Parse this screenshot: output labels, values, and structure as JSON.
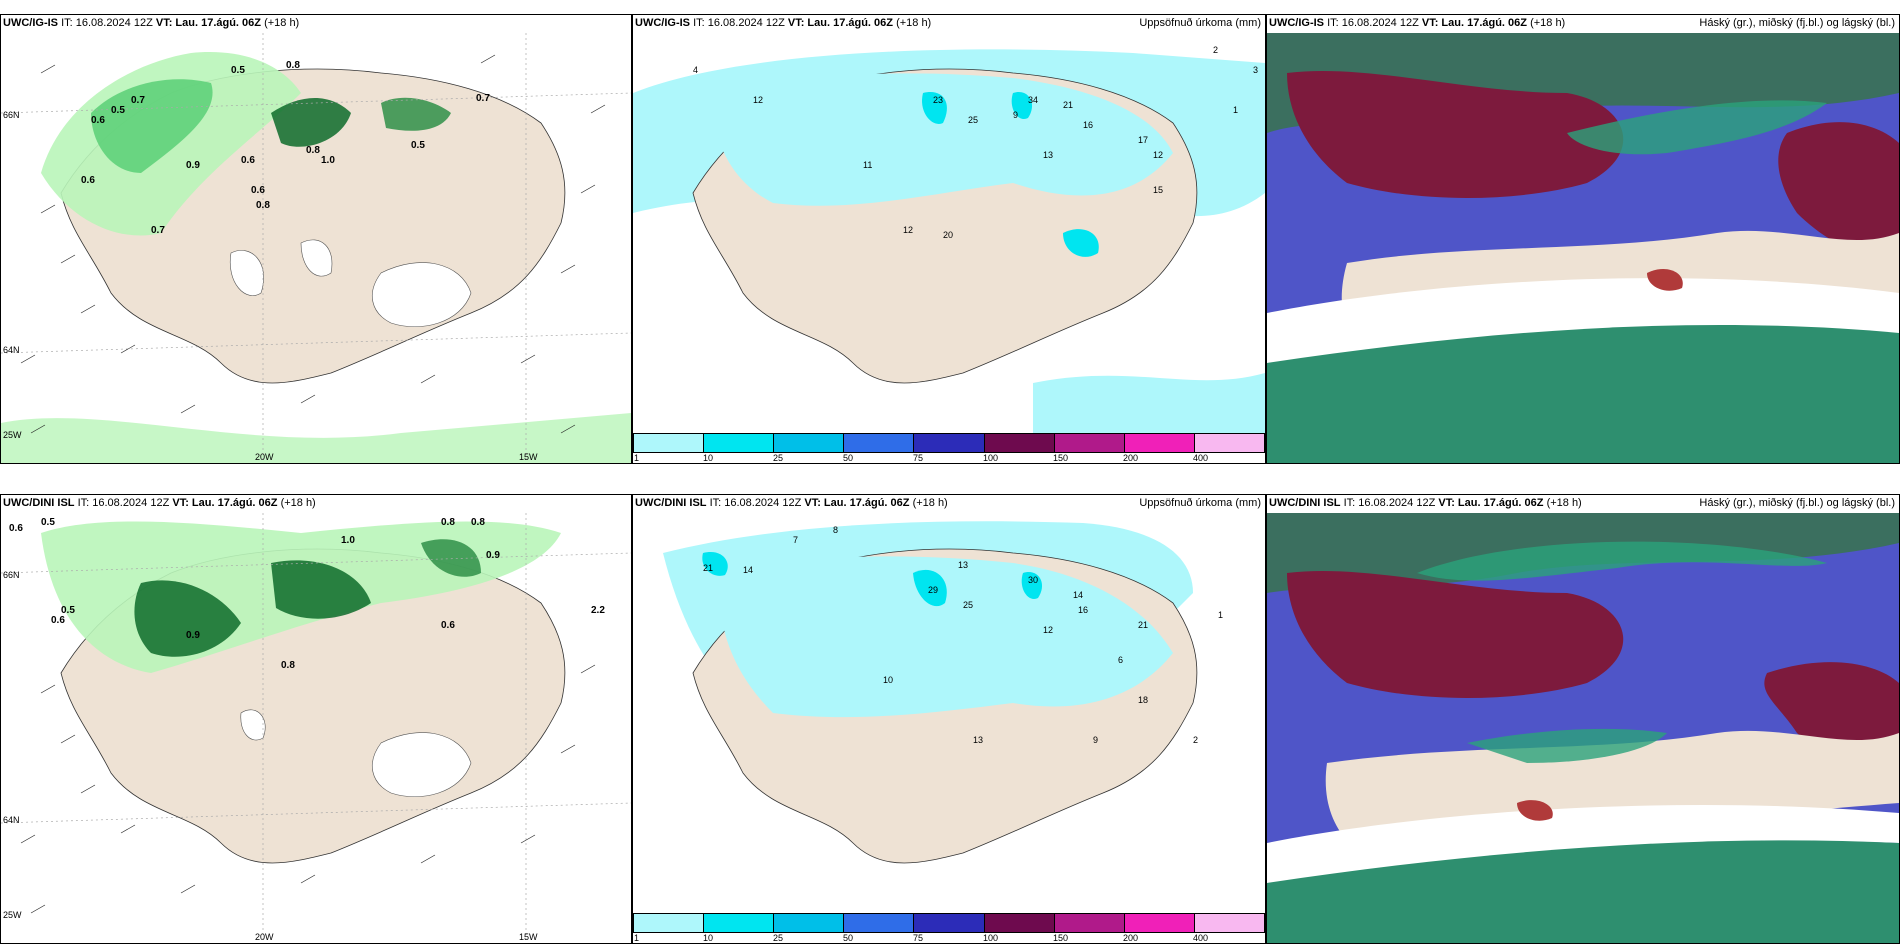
{
  "rows": [
    {
      "left": {
        "model": "UWC/IG-IS",
        "it": "IT: 16.08.2024 12Z",
        "vt": "VT: Lau. 17.ágú. 06Z",
        "lead": "(+18 h)",
        "right": ""
      },
      "mid": {
        "model": "UWC/IG-IS",
        "it": "IT: 16.08.2024 12Z",
        "vt": "VT: Lau. 17.ágú. 06Z",
        "lead": "(+18 h)",
        "right": "Uppsöfnuð úrkoma (mm)"
      },
      "cloud": {
        "model": "UWC/IG-IS",
        "it": "IT: 16.08.2024 12Z",
        "vt": "VT: Lau. 17.ágú. 06Z",
        "lead": "(+18 h)",
        "right": "Háský (gr.), miðský (fj.bl.) og lágský (bl.)"
      }
    },
    {
      "left": {
        "model": "UWC/DINI ISL",
        "it": "IT: 16.08.2024 12Z",
        "vt": "VT: Lau. 17.ágú. 06Z",
        "lead": "(+18 h)",
        "right": ""
      },
      "mid": {
        "model": "UWC/DINI ISL",
        "it": "IT: 16.08.2024 12Z",
        "vt": "VT: Lau. 17.ágú. 06Z",
        "lead": "(+18 h)",
        "right": "Uppsöfnuð úrkoma (mm)"
      },
      "cloud": {
        "model": "UWC/DINI ISL",
        "it": "IT: 16.08.2024 12Z",
        "vt": "VT: Lau. 17.ágú. 06Z",
        "lead": "(+18 h)",
        "right": "Háský (gr.), miðský (fj.bl.) og lágský (bl.)"
      }
    }
  ],
  "axis_labels": {
    "lat66": "66N",
    "lat64": "64N",
    "lon25": "25W",
    "lon20": "20W",
    "lon15": "15W"
  },
  "colorbar": {
    "ticks": [
      "1",
      "10",
      "25",
      "50",
      "75",
      "100",
      "150",
      "200",
      "400"
    ],
    "colors": [
      "#aef7fb",
      "#00e5f0",
      "#00bfe8",
      "#2f6de8",
      "#2c2cb8",
      "#6e0a4e",
      "#b01a8a",
      "#f020b8",
      "#f8b8f0"
    ]
  },
  "colors": {
    "land": "#eee2d4",
    "precip_light": "#b9f5b9",
    "precip_mid": "#5fd27a",
    "precip_dark": "#0d6b2a",
    "mm_light": "#aef7fb",
    "cloud_high": "#7d1a3d",
    "cloud_mid": "#4f55c8",
    "cloud_low": "#2e8f6f"
  },
  "values_top_left": [
    "0.5",
    "0.8",
    "0.6",
    "0.5",
    "0.7",
    "0.6",
    "0.8",
    "0.6",
    "0.7",
    "0.5",
    "0.7",
    "0.9",
    "1.0",
    "0.8",
    "0.6"
  ],
  "values_bot_left": [
    "0.6",
    "0.5",
    "1.0",
    "0.8",
    "0.8",
    "0.9",
    "0.6",
    "0.5",
    "0.8",
    "0.6",
    "0.9",
    "2.2"
  ],
  "values_top_mid": [
    "4",
    "12",
    "23",
    "25",
    "34",
    "21",
    "16",
    "17",
    "12",
    "13",
    "9",
    "11",
    "20",
    "12",
    "15",
    "2",
    "3",
    "1"
  ],
  "values_bot_mid": [
    "7",
    "8",
    "29",
    "25",
    "13",
    "30",
    "14",
    "21",
    "16",
    "12",
    "18",
    "21",
    "14",
    "10",
    "13",
    "6",
    "9",
    "2",
    "1"
  ]
}
